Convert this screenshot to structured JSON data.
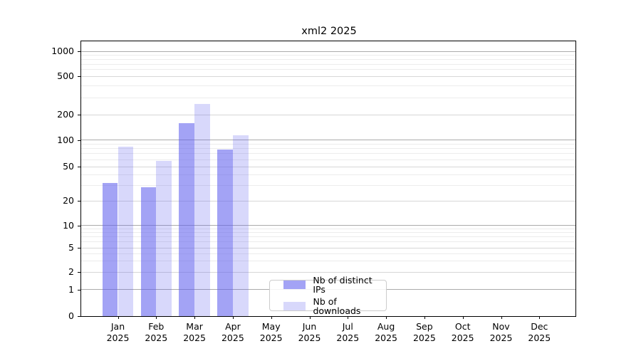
{
  "title": "xml2 2025",
  "colors": {
    "ips_bar": "rgba(93,93,238,0.57)",
    "downloads_bar": "rgba(93,93,238,0.24)",
    "grid_major": "#ababab",
    "grid_labeled": "#d7d7d7",
    "grid_minor": "#ececec",
    "spine": "#000000",
    "legend_border": "#cccccc"
  },
  "chart_data": {
    "type": "bar",
    "title": "xml2 2025",
    "categories": [
      "Jan 2025",
      "Feb 2025",
      "Mar 2025",
      "Apr 2025",
      "May 2025",
      "Jun 2025",
      "Jul 2025",
      "Aug 2025",
      "Sep 2025",
      "Oct 2025",
      "Nov 2025",
      "Dec 2025"
    ],
    "series": [
      {
        "name": "Nb of distinct IPs",
        "color_key": "ips_bar",
        "values": [
          32,
          29,
          160,
          78,
          null,
          null,
          null,
          null,
          null,
          null,
          null,
          null
        ]
      },
      {
        "name": "Nb of downloads",
        "color_key": "downloads_bar",
        "values": [
          84,
          58,
          260,
          115,
          null,
          null,
          null,
          null,
          null,
          null,
          null,
          null
        ]
      }
    ],
    "yticks": [
      0,
      1,
      2,
      5,
      10,
      20,
      50,
      100,
      200,
      500,
      1000
    ],
    "minor_yticks": [
      3,
      4,
      6,
      7,
      8,
      9,
      30,
      40,
      60,
      70,
      80,
      90,
      300,
      400,
      600,
      700,
      800,
      900
    ],
    "yscale": "log-like (custom spacing, 0 baseline)",
    "ylim": [
      0,
      1000
    ],
    "grid": true,
    "legend_position": "lower center"
  }
}
